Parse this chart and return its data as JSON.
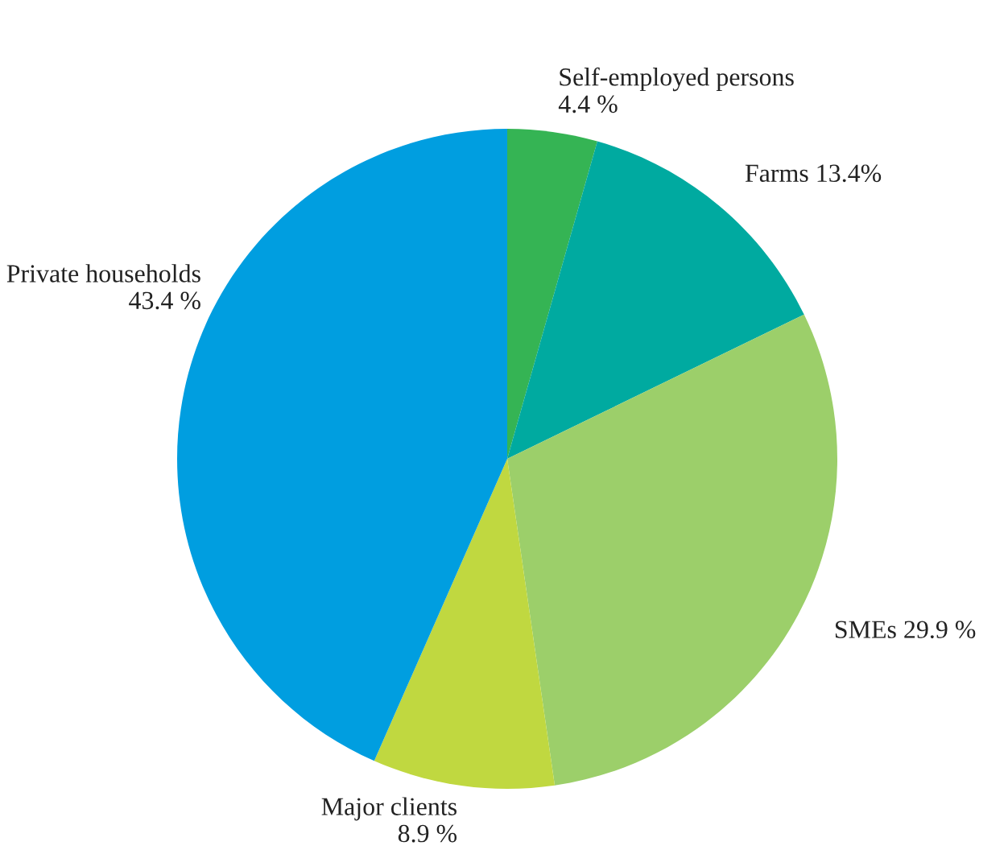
{
  "chart_data": {
    "type": "pie",
    "categories": [
      "Self-employed persons",
      "Farms",
      "SMEs",
      "Major clients",
      "Private households"
    ],
    "values": [
      4.4,
      13.4,
      29.9,
      8.9,
      43.4
    ],
    "value_labels": [
      "4.4 %",
      "13.4%",
      "29.9 %",
      "8.9 %",
      "43.4 %"
    ],
    "colors": [
      "#35b454",
      "#00aaa0",
      "#9ccf6a",
      "#c0d840",
      "#009ee0"
    ],
    "legend": false
  }
}
